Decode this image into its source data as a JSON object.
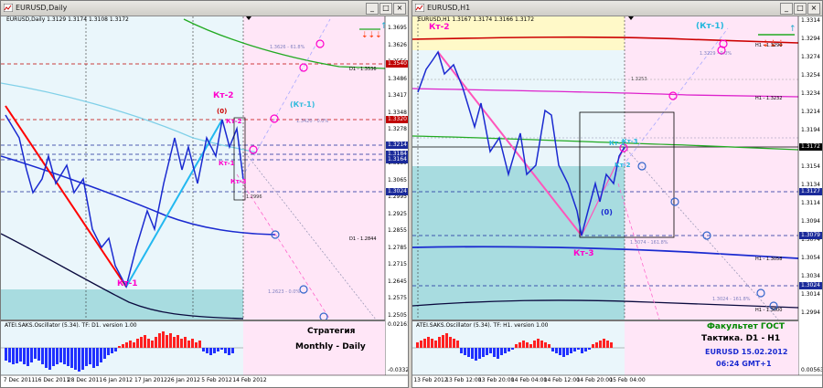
{
  "left": {
    "title": "EURUSD,Daily",
    "ohlc": "EURUSD,Daily  1.3129 1.3174 1.3108 1.3172",
    "osc_label": "ATEI.SAKS.Oscillator (5.34). TF: D1. version 1.00",
    "prices": [
      "1.3695",
      "1.3626",
      "1.3556",
      "1.3486",
      "1.3417",
      "1.3348",
      "1.3278",
      "1.3209",
      "1.3139",
      "1.3065",
      "1.2995",
      "1.2925",
      "1.2855",
      "1.2785",
      "1.2715",
      "1.2645",
      "1.2575",
      "1.2505"
    ],
    "highlight_prices": [
      {
        "text": "1.3540",
        "color": "#c00000"
      },
      {
        "text": "1.3320",
        "color": "#c00000"
      },
      {
        "text": "1.3214",
        "color": "#1a2a9a"
      },
      {
        "text": "1.3184",
        "color": "#1a2a9a"
      },
      {
        "text": "1.3164",
        "color": "#1a2a9a"
      },
      {
        "text": "1.3024",
        "color": "#1a2a9a"
      }
    ],
    "osc_scale": [
      "0.02161",
      "-0.03324"
    ],
    "dates": [
      "7 Dec 2011",
      "16 Dec 2011",
      "28 Dec 2011",
      "6 Jan 2012",
      "17 Jan 2012",
      "26 Jan 2012",
      "5 Feb 2012",
      "14 Feb 2012"
    ],
    "annotations": {
      "kt1": "Кт-1",
      "kt2": "Кт-2",
      "kt2b": "Кт-2",
      "kt1b": "Кт-1",
      "kt3": "Кт-3",
      "kt1_cyan": "(Кт-1)",
      "zero": "(0)",
      "d1a": "D1 - 1.3536",
      "d1b": "D1 - 1.2844",
      "fib1": "1.3626 - 61.8%",
      "fib2": "1.3420 - 0.0%",
      "fib3": "1.2623 - 0.0%",
      "fib4": "1.2996",
      "strategy_l1": "Стратегия",
      "strategy_l2": "Monthly - Daily"
    }
  },
  "right": {
    "title": "EURUSD,H1",
    "ohlc": "EURUSD,H1  1.3167 1.3174 1.3166 1.3172",
    "osc_label": "ATEI.SAKS.Oscillator (5.34). TF: H1. version 1.00",
    "prices": [
      "1.3314",
      "1.3294",
      "1.3274",
      "1.3254",
      "1.3234",
      "1.3214",
      "1.3194",
      "1.3174",
      "1.3154",
      "1.3134",
      "1.3114",
      "1.3094",
      "1.3074",
      "1.3054",
      "1.3034",
      "1.3014",
      "1.2994"
    ],
    "highlight_prices": [
      {
        "text": "1.3172",
        "color": "#000000"
      },
      {
        "text": "1.3127",
        "color": "#1a2a9a"
      },
      {
        "text": "1.3079",
        "color": "#1a2a9a"
      },
      {
        "text": "1.3024",
        "color": "#1a2a9a"
      }
    ],
    "osc_scale": [
      "0.00563"
    ],
    "dates": [
      "13 Feb 2012",
      "13 Feb 12:00",
      "13 Feb 20:00",
      "14 Feb 04:00",
      "14 Feb 12:00",
      "14 Feb 20:00",
      "15 Feb 04:00"
    ],
    "annotations": {
      "kt2": "Кт-2",
      "kt1": "(Кт-1)",
      "kt3": "Кт-3",
      "kt1b": "Кт-1",
      "kt3b": "Кт-3",
      "kt2b": "Кт-2",
      "zero": "(0)",
      "h1a": "H1 - 1.3290",
      "h1b": "H1 - 1.3232",
      "h1c": "H1 - 1.3058",
      "h1d": "H1 - 1.3000",
      "lvl1": "1.3253",
      "fib_a": "1.3229 - 0.0%",
      "fib_b": "1.3074 - 161.8%",
      "fib_c": "1.3024 - 161.8%",
      "school": "Факультет ГОСТ",
      "tactic": "Тактика. D1 - H1",
      "symbol_date": "EURUSD 15.02.2012",
      "time": "06:24 GMT+1"
    }
  },
  "colors": {
    "red": "#ff0000",
    "blue": "#0000ff",
    "navy": "#0a0a6e",
    "cyan": "#3cc0f0",
    "magenta": "#ff00cc",
    "green": "#22aa22",
    "teal_zone": "#a8dce0",
    "pink_zone": "#ffe6f7",
    "yellow_zone": "#fff9c8",
    "bg": "#eaf6fb"
  }
}
